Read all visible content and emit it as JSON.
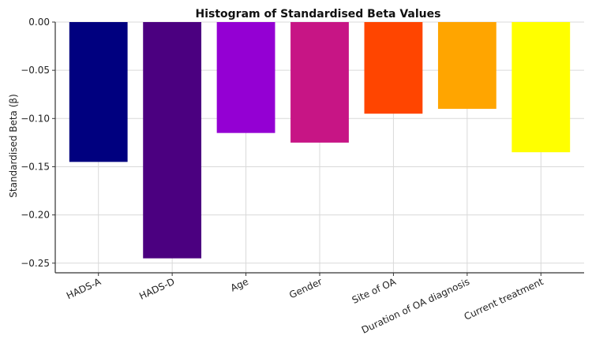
{
  "chart_data": {
    "type": "bar",
    "title": "Histogram of Standardised Beta Values",
    "xlabel": "",
    "ylabel": "Standardised Beta (β)",
    "categories": [
      "HADS-A",
      "HADS-D",
      "Age",
      "Gender",
      "Site of OA",
      "Duration of OA diagnosis",
      "Current treatment"
    ],
    "values": [
      -0.145,
      -0.245,
      -0.115,
      -0.125,
      -0.095,
      -0.09,
      -0.135
    ],
    "colors": [
      "#00007f",
      "#4b0080",
      "#9400d3",
      "#c71585",
      "#ff4500",
      "#ffa500",
      "#ffff00"
    ],
    "ylim": [
      -0.26,
      0.0
    ],
    "yticks": [
      0.0,
      -0.05,
      -0.1,
      -0.15,
      -0.2,
      -0.25
    ],
    "ytick_labels": [
      "0.00",
      "−0.05",
      "−0.10",
      "−0.15",
      "−0.20",
      "−0.25"
    ],
    "grid": true
  }
}
